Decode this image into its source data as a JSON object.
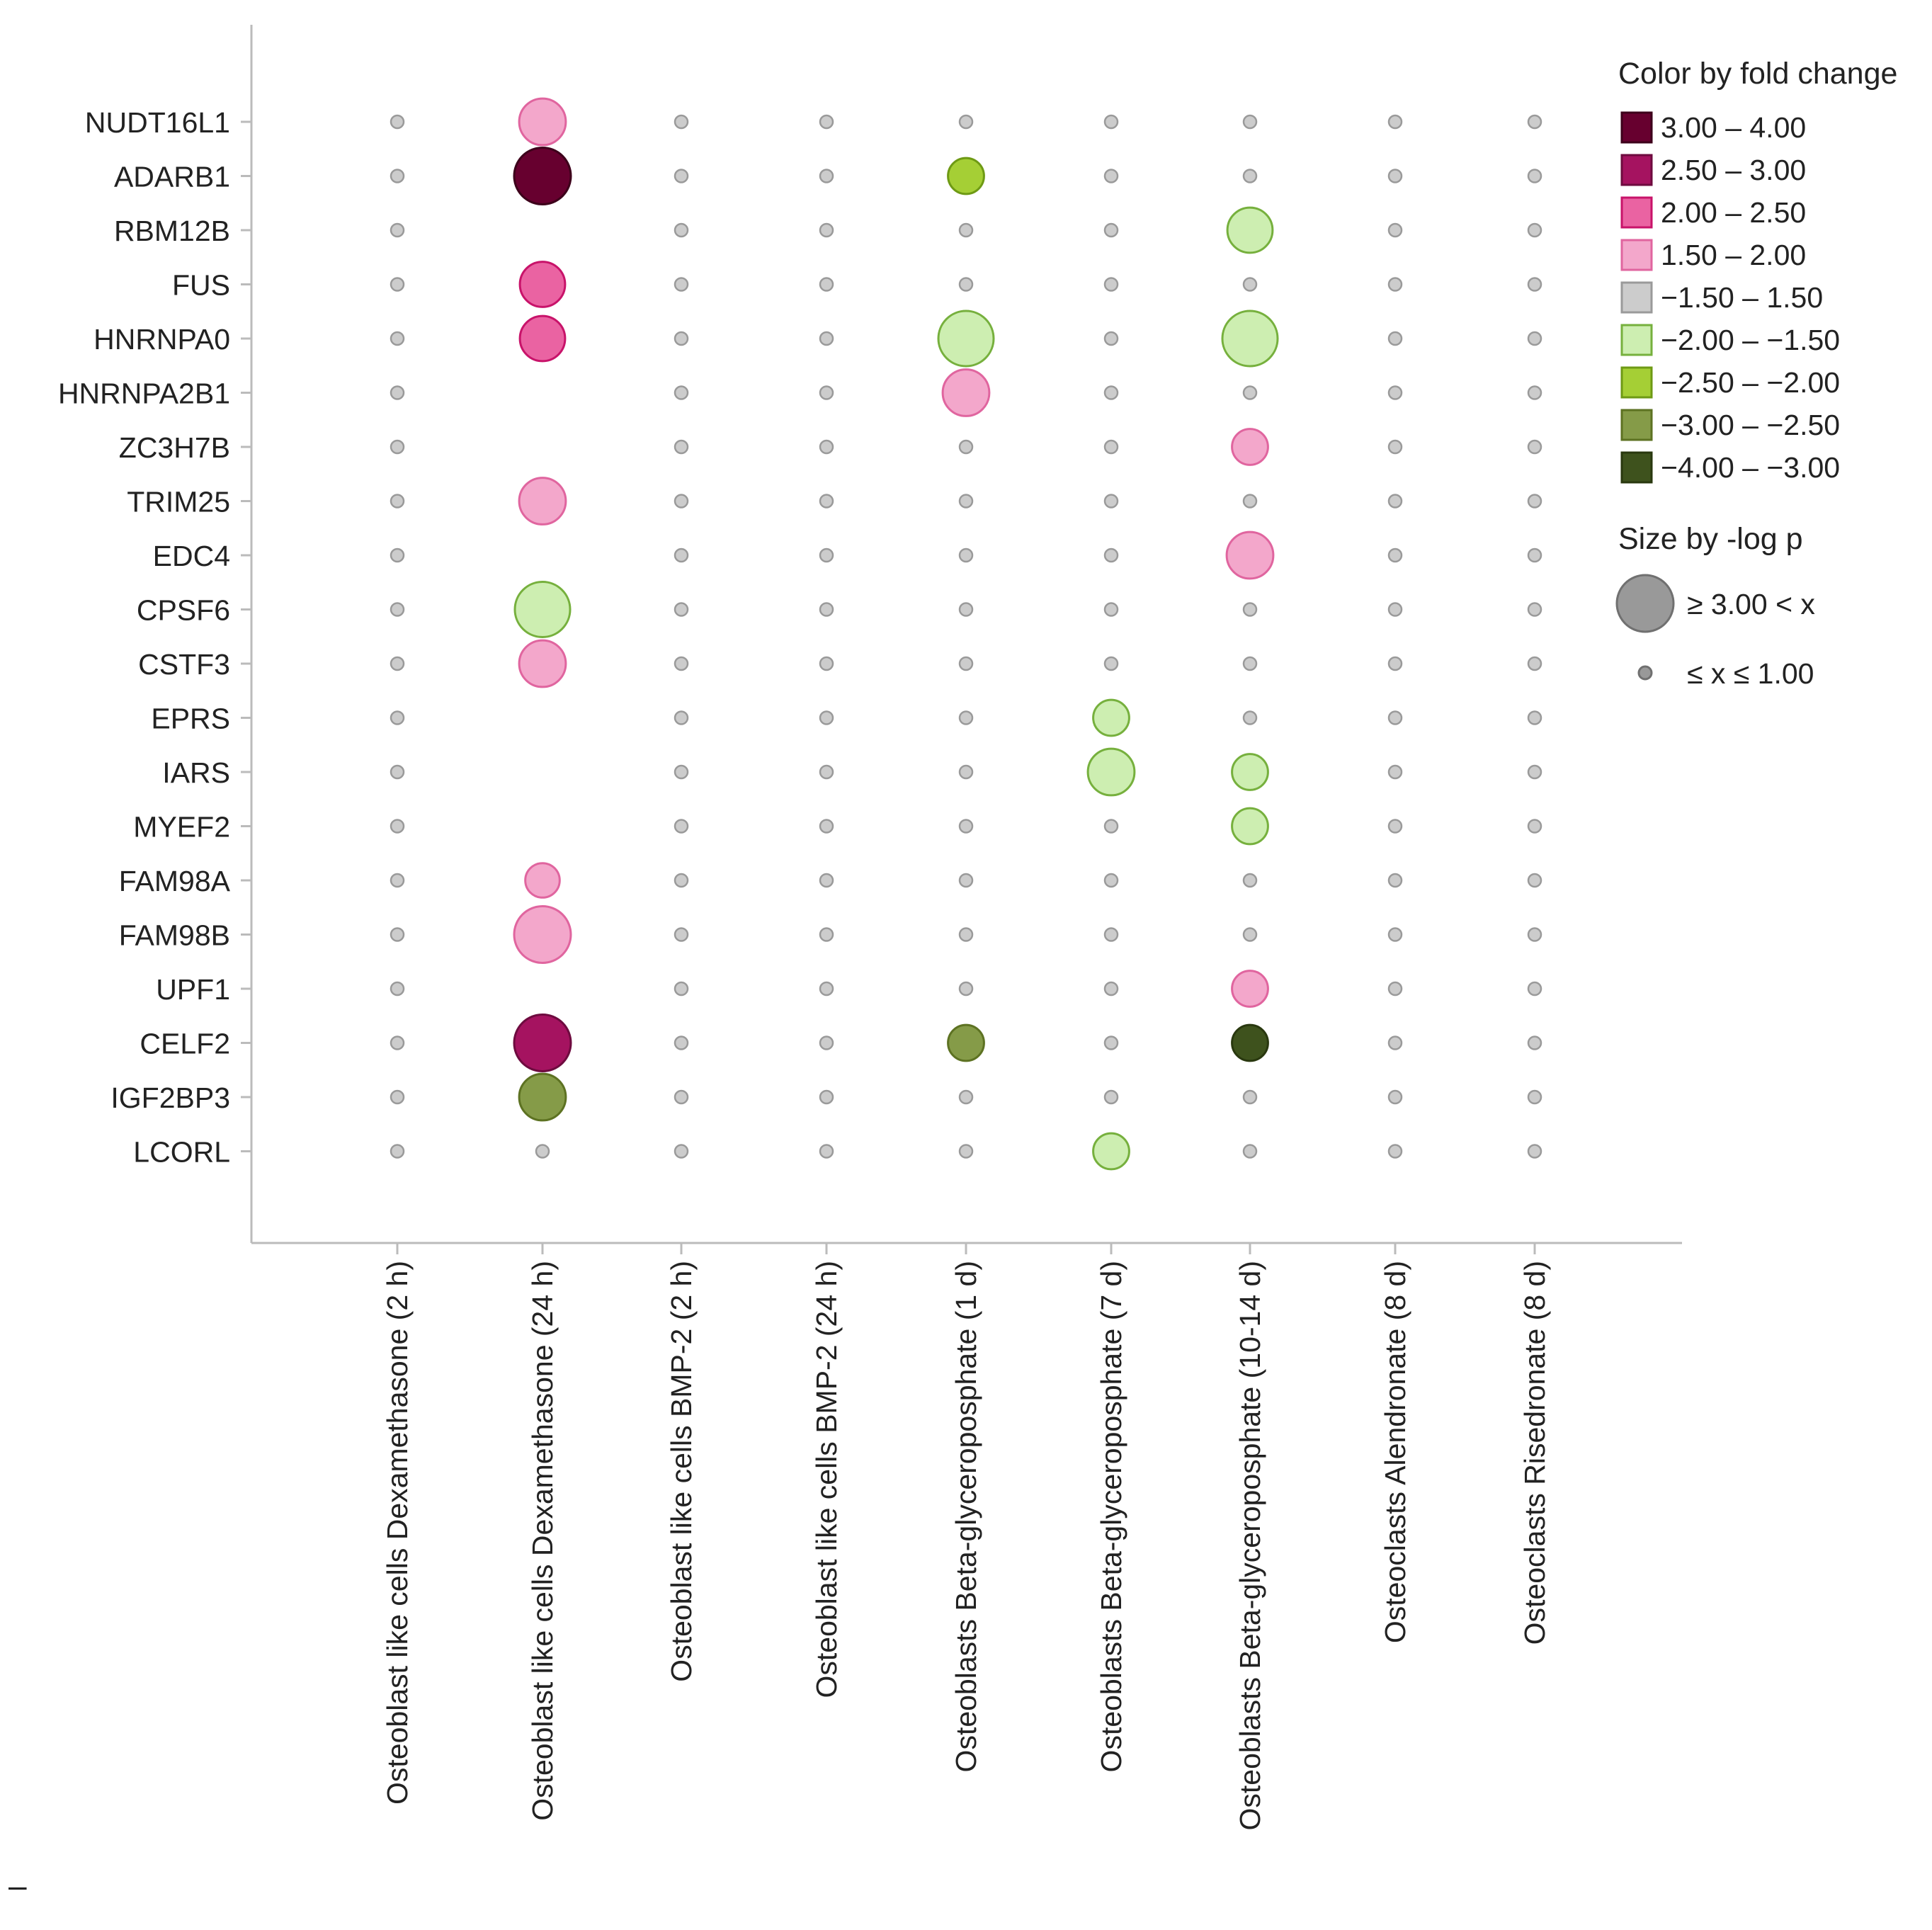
{
  "chart_data": {
    "type": "dot-plot",
    "title": "",
    "xlabel": "",
    "ylabel": "",
    "genes": [
      "NUDT16L1",
      "ADARB1",
      "RBM12B",
      "FUS",
      "HNRNPA0",
      "HNRNPA2B1",
      "ZC3H7B",
      "TRIM25",
      "EDC4",
      "CPSF6",
      "CSTF3",
      "EPRS",
      "IARS",
      "MYEF2",
      "FAM98A",
      "FAM98B",
      "UPF1",
      "CELF2",
      "IGF2BP3",
      "LCORL"
    ],
    "conditions": [
      "Osteoblast like cells Dexamethasone (2 h)",
      "Osteoblast like cells Dexamethasone (24 h)",
      "Osteoblast like cells BMP-2 (2 h)",
      "Osteoblast like cells BMP-2 (24 h)",
      "Osteoblasts Beta-glyceroposphate (1 d)",
      "Osteoblasts Beta-glyceroposphate (7 d)",
      "Osteoblasts Beta-glyceroposphate (10-14 d)",
      "Osteoclasts Alendronate (8 d)",
      "Osteoclasts Risedronate (8 d)"
    ],
    "color_legend": {
      "title": "Color by fold change",
      "bins": [
        {
          "label": "3.00 – 4.00",
          "fill": "#67002f",
          "stroke": "#3d001b"
        },
        {
          "label": "2.50 – 3.00",
          "fill": "#a51360",
          "stroke": "#6e0b3f"
        },
        {
          "label": "2.00 – 2.50",
          "fill": "#ea63a2",
          "stroke": "#c8136a"
        },
        {
          "label": "1.50 – 2.00",
          "fill": "#f3a7cb",
          "stroke": "#e0659f"
        },
        {
          "label": "−1.50 – 1.50",
          "fill": "#cccccc",
          "stroke": "#9a9a9a"
        },
        {
          "label": "−2.00 – −1.50",
          "fill": "#cdeeb1",
          "stroke": "#76b03d"
        },
        {
          "label": "−2.50 – −2.00",
          "fill": "#a5cf35",
          "stroke": "#6e9a14"
        },
        {
          "label": "−3.00 – −2.50",
          "fill": "#859b48",
          "stroke": "#5d7222"
        },
        {
          "label": "−4.00 – −3.00",
          "fill": "#3e521d",
          "stroke": "#29380f"
        }
      ]
    },
    "size_legend": {
      "title": "Size by -log p",
      "items": [
        {
          "label": "≥ 3.00 < x",
          "value": 3.0
        },
        {
          "label": "≤ x ≤ 1.00",
          "value": 1.0
        }
      ]
    },
    "stray_mark": "–",
    "points": [
      {
        "gene": "NUDT16L1",
        "condition": 1,
        "fold_bin": 3,
        "neg_log_p": 2.3
      },
      {
        "gene": "ADARB1",
        "condition": 1,
        "fold_bin": 0,
        "neg_log_p": 3.0
      },
      {
        "gene": "ADARB1",
        "condition": 4,
        "fold_bin": 6,
        "neg_log_p": 1.6
      },
      {
        "gene": "RBM12B",
        "condition": 6,
        "fold_bin": 5,
        "neg_log_p": 2.2
      },
      {
        "gene": "FUS",
        "condition": 1,
        "fold_bin": 2,
        "neg_log_p": 2.2
      },
      {
        "gene": "HNRNPA0",
        "condition": 1,
        "fold_bin": 2,
        "neg_log_p": 2.2
      },
      {
        "gene": "HNRNPA0",
        "condition": 4,
        "fold_bin": 5,
        "neg_log_p": 2.9
      },
      {
        "gene": "HNRNPA0",
        "condition": 6,
        "fold_bin": 5,
        "neg_log_p": 2.9
      },
      {
        "gene": "HNRNPA2B1",
        "condition": 4,
        "fold_bin": 3,
        "neg_log_p": 2.3
      },
      {
        "gene": "ZC3H7B",
        "condition": 6,
        "fold_bin": 3,
        "neg_log_p": 1.6
      },
      {
        "gene": "TRIM25",
        "condition": 1,
        "fold_bin": 3,
        "neg_log_p": 2.3
      },
      {
        "gene": "EDC4",
        "condition": 6,
        "fold_bin": 3,
        "neg_log_p": 2.3
      },
      {
        "gene": "CPSF6",
        "condition": 1,
        "fold_bin": 5,
        "neg_log_p": 2.9
      },
      {
        "gene": "CSTF3",
        "condition": 1,
        "fold_bin": 3,
        "neg_log_p": 2.3
      },
      {
        "gene": "EPRS",
        "condition": 5,
        "fold_bin": 5,
        "neg_log_p": 1.6
      },
      {
        "gene": "IARS",
        "condition": 5,
        "fold_bin": 5,
        "neg_log_p": 2.3
      },
      {
        "gene": "IARS",
        "condition": 6,
        "fold_bin": 5,
        "neg_log_p": 1.6
      },
      {
        "gene": "MYEF2",
        "condition": 6,
        "fold_bin": 5,
        "neg_log_p": 1.6
      },
      {
        "gene": "FAM98A",
        "condition": 1,
        "fold_bin": 3,
        "neg_log_p": 1.5
      },
      {
        "gene": "FAM98B",
        "condition": 1,
        "fold_bin": 3,
        "neg_log_p": 3.0
      },
      {
        "gene": "UPF1",
        "condition": 6,
        "fold_bin": 3,
        "neg_log_p": 1.6
      },
      {
        "gene": "CELF2",
        "condition": 1,
        "fold_bin": 1,
        "neg_log_p": 3.0
      },
      {
        "gene": "CELF2",
        "condition": 4,
        "fold_bin": 7,
        "neg_log_p": 1.6
      },
      {
        "gene": "CELF2",
        "condition": 6,
        "fold_bin": 8,
        "neg_log_p": 1.6
      },
      {
        "gene": "IGF2BP3",
        "condition": 1,
        "fold_bin": 7,
        "neg_log_p": 2.3
      },
      {
        "gene": "LCORL",
        "condition": 5,
        "fold_bin": 5,
        "neg_log_p": 1.6
      }
    ],
    "missing_points": [
      {
        "gene": "RBM12B",
        "condition": 1
      },
      {
        "gene": "HNRNPA2B1",
        "condition": 1
      },
      {
        "gene": "ZC3H7B",
        "condition": 1
      },
      {
        "gene": "EDC4",
        "condition": 1
      },
      {
        "gene": "EPRS",
        "condition": 1
      },
      {
        "gene": "IARS",
        "condition": 1
      },
      {
        "gene": "MYEF2",
        "condition": 1
      },
      {
        "gene": "UPF1",
        "condition": 1
      }
    ],
    "default_fold_bin": 4,
    "default_neg_log_p": 1.0,
    "grid": false
  }
}
